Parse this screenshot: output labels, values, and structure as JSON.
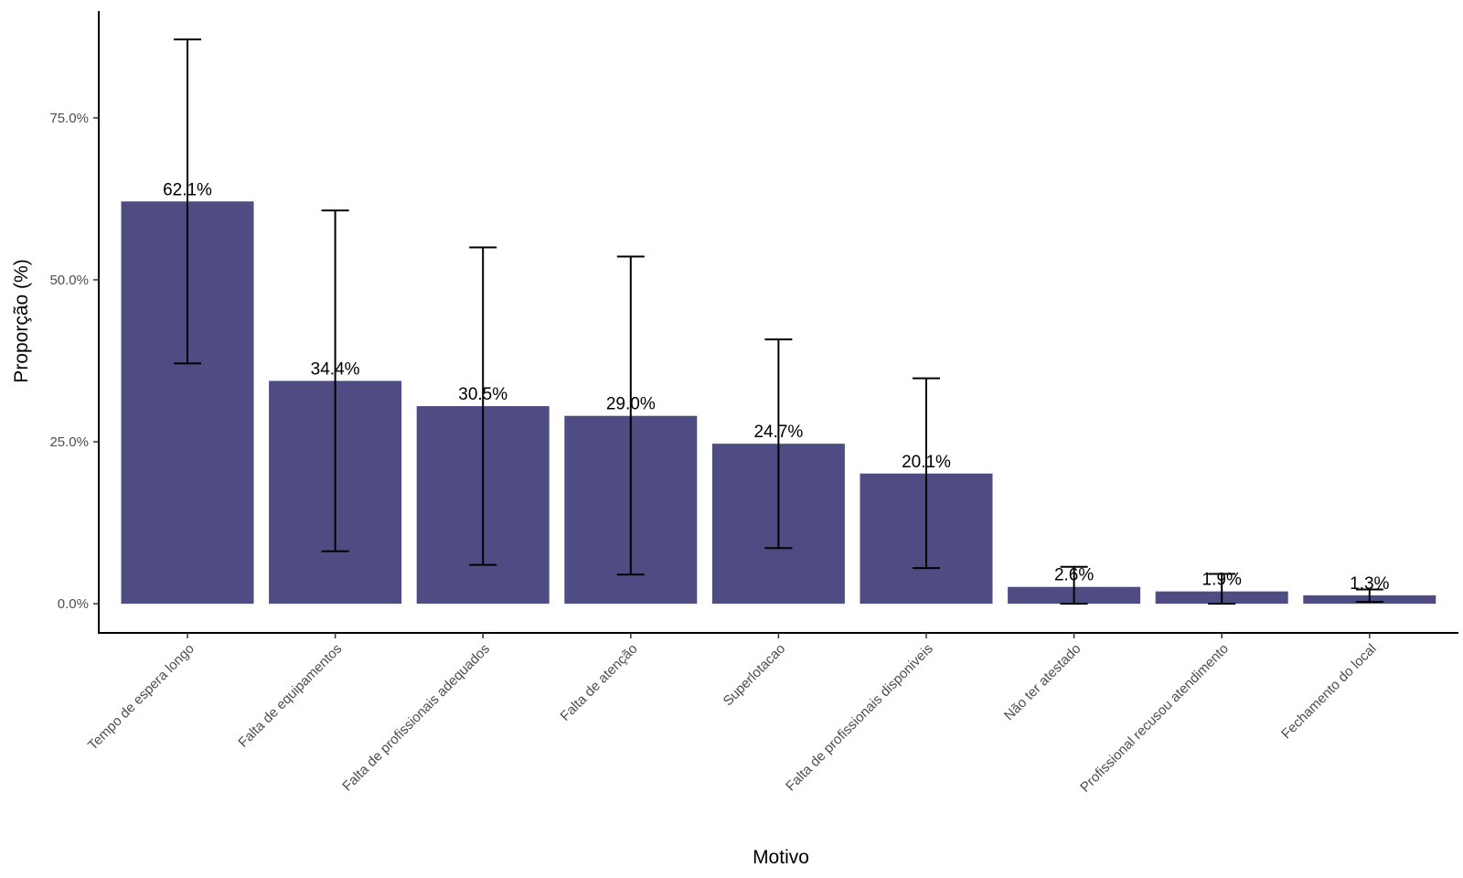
{
  "chart_data": {
    "type": "bar",
    "title": "",
    "xlabel": "Motivo",
    "ylabel": "Proporção (%)",
    "ylim": [
      -4.5,
      91.5
    ],
    "yticks": [
      0,
      25,
      50,
      75
    ],
    "ytick_labels": [
      "0.0%",
      "25.0%",
      "50.0%",
      "75.0%"
    ],
    "grid": false,
    "legend": "none",
    "categories": [
      "Tempo de espera longo",
      "Falta de equipamentos",
      "Falta de profissionais adequados",
      "Falta de atenção",
      "Superlotacao",
      "Falta de profissionais disponiveis",
      "Não ter atestado",
      "Profissional recusou atendimento",
      "Fechamento do local"
    ],
    "values": [
      62.1,
      34.4,
      30.5,
      29.0,
      24.7,
      20.1,
      2.6,
      1.9,
      1.3
    ],
    "value_labels": [
      "62.1%",
      "34.4%",
      "30.5%",
      "29.0%",
      "24.7%",
      "20.1%",
      "2.6%",
      "1.9%",
      "1.3%"
    ],
    "error_low": [
      37.1,
      8.1,
      6.0,
      4.5,
      8.6,
      5.5,
      0.0,
      0.0,
      0.3
    ],
    "error_high": [
      87.1,
      60.7,
      55.0,
      53.6,
      40.8,
      34.8,
      5.7,
      4.6,
      2.2
    ],
    "colors": {
      "bar": "#4e4c82",
      "errorbar": "#000000",
      "axis": "#000000",
      "tick_label": "#4d4d4d"
    }
  }
}
